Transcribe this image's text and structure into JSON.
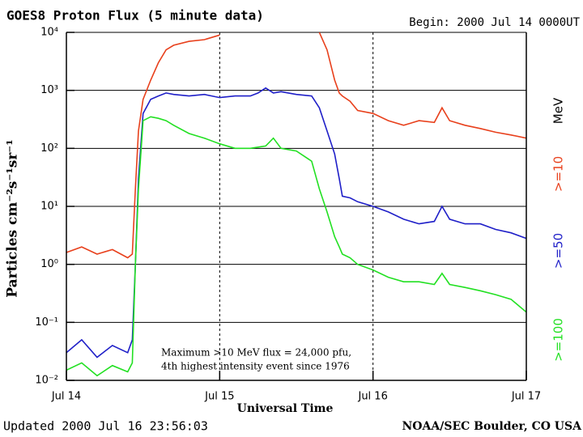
{
  "chart_data": {
    "type": "line",
    "title": "GOES8 Proton Flux (5 minute data)",
    "subtitle": "Begin: 2000 Jul 14 0000UT",
    "y_label": "Particles cm⁻²s⁻¹sr⁻¹",
    "x_label": "Universal Time",
    "footer_left": "Updated 2000 Jul 16 23:56:03",
    "footer_right": "NOAA/SEC Boulder, CO USA",
    "annotations": [
      "Maximum >10 MeV flux = 24,000 pfu,",
      "4th highest intensity event since 1976"
    ],
    "legend_unit": "MeV",
    "legend_position": "right",
    "yscale": "log",
    "grid": true,
    "xlim": [
      0,
      3
    ],
    "xticks": [
      {
        "value": 0,
        "label": "Jul 14"
      },
      {
        "value": 1,
        "label": "Jul 15"
      },
      {
        "value": 2,
        "label": "Jul 16"
      },
      {
        "value": 3,
        "label": "Jul 17"
      }
    ],
    "ylim": [
      0.01,
      10000
    ],
    "yticks": [
      {
        "value": 0.01,
        "label": "10⁻²"
      },
      {
        "value": 0.1,
        "label": "10⁻¹"
      },
      {
        "value": 1,
        "label": "10⁰"
      },
      {
        "value": 10,
        "label": "10¹"
      },
      {
        "value": 100,
        "label": "10²"
      },
      {
        "value": 1000,
        "label": "10³"
      },
      {
        "value": 10000,
        "label": "10⁴"
      }
    ],
    "x": [
      0,
      0.1,
      0.2,
      0.3,
      0.4,
      0.43,
      0.45,
      0.47,
      0.5,
      0.55,
      0.6,
      0.65,
      0.7,
      0.8,
      0.9,
      1.0,
      1.1,
      1.2,
      1.25,
      1.3,
      1.35,
      1.4,
      1.5,
      1.6,
      1.65,
      1.7,
      1.75,
      1.78,
      1.8,
      1.85,
      1.9,
      2.0,
      2.1,
      2.2,
      2.3,
      2.4,
      2.45,
      2.5,
      2.6,
      2.7,
      2.8,
      2.9,
      3.0
    ],
    "series": [
      {
        "name": ">=10",
        "color": "#e8401c",
        "values": [
          1.6,
          2,
          1.5,
          1.8,
          1.3,
          1.5,
          20,
          200,
          700,
          1500,
          3000,
          5000,
          6000,
          7000,
          7500,
          9000,
          null,
          null,
          null,
          null,
          null,
          null,
          null,
          null,
          10000,
          5000,
          1500,
          900,
          800,
          650,
          450,
          400,
          300,
          250,
          300,
          280,
          500,
          300,
          250,
          220,
          190,
          170,
          150
        ]
      },
      {
        "name": ">=50",
        "color": "#1f1fc8",
        "values": [
          0.03,
          0.05,
          0.025,
          0.04,
          0.03,
          0.05,
          1,
          30,
          400,
          700,
          800,
          900,
          850,
          800,
          850,
          750,
          800,
          800,
          900,
          1100,
          900,
          950,
          850,
          800,
          500,
          200,
          80,
          30,
          15,
          14,
          12,
          10,
          8,
          6,
          5,
          5.5,
          10,
          6,
          5,
          5,
          4,
          3.5,
          2.8
        ]
      },
      {
        "name": ">=100",
        "color": "#22e022",
        "values": [
          0.015,
          0.02,
          0.012,
          0.018,
          0.014,
          0.02,
          1,
          20,
          300,
          350,
          330,
          300,
          250,
          180,
          150,
          120,
          100,
          100,
          105,
          110,
          150,
          100,
          90,
          60,
          20,
          8,
          3,
          2,
          1.5,
          1.3,
          1,
          0.8,
          0.6,
          0.5,
          0.5,
          0.45,
          0.7,
          0.45,
          0.4,
          0.35,
          0.3,
          0.25,
          0.15
        ]
      }
    ]
  }
}
